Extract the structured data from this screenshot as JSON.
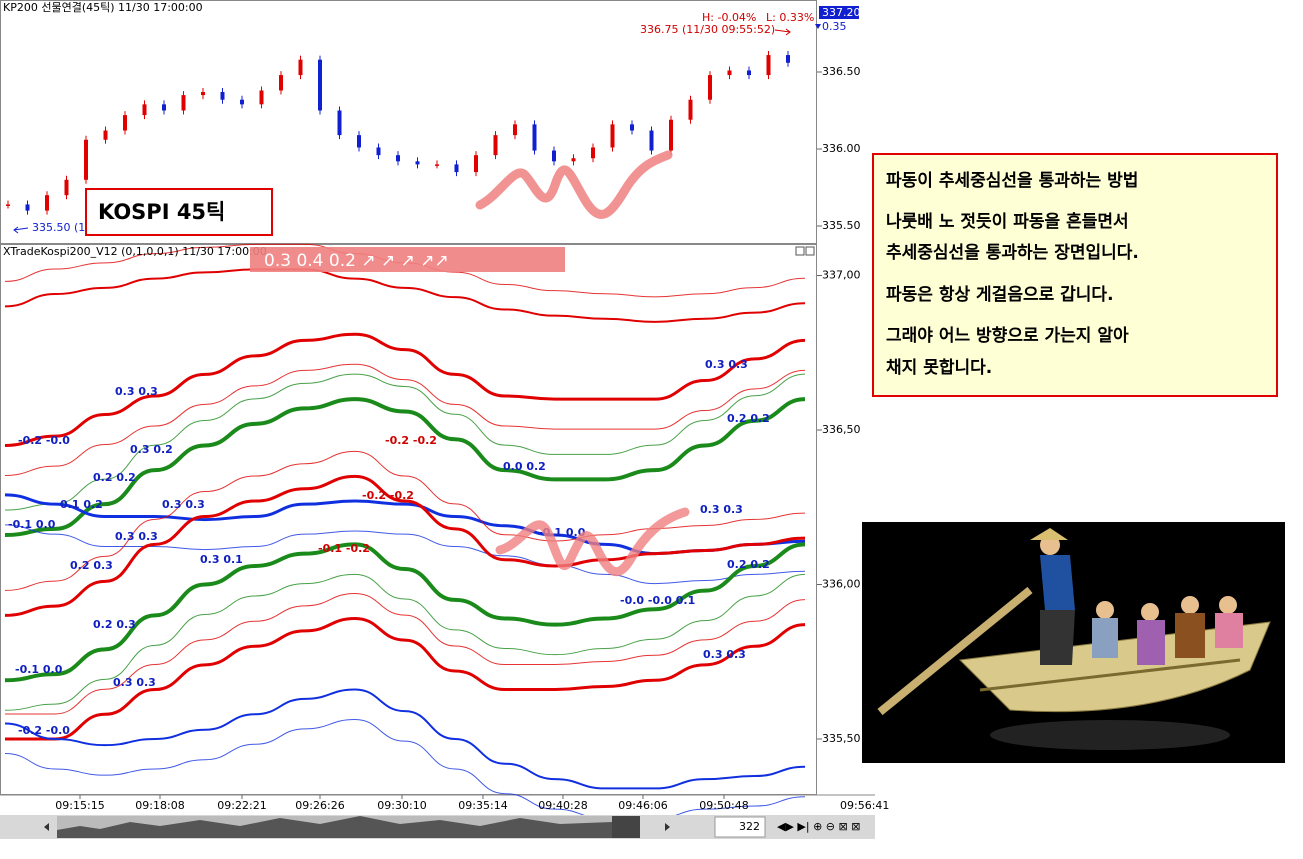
{
  "top_panel": {
    "title": "KP200 선물연결(45틱) 11/30 17:00:00",
    "high_label": "H: -0.04%",
    "low_label": "L: 0.33%",
    "last_label": "336.75 (11/30 09:55:52)",
    "current_price": "337.20",
    "change": "0.35",
    "low_marker": "335.50 (1",
    "annotation": "KOSPI 45틱",
    "ylim": [
      335.4,
      336.95
    ],
    "yticks": [
      {
        "value": 335.5,
        "label": "335.50"
      },
      {
        "value": 336,
        "label": "336.00"
      },
      {
        "value": 336.5,
        "label": "336.50"
      }
    ],
    "values": [
      335.64,
      335.6,
      335.7,
      335.8,
      336.06,
      336.12,
      336.22,
      336.29,
      336.25,
      336.35,
      336.37,
      336.32,
      336.29,
      336.38,
      336.48,
      336.58,
      336.25,
      336.09,
      336.01,
      335.96,
      335.92,
      335.9,
      335.9,
      335.85,
      335.96,
      336.09,
      336.16,
      335.99,
      335.92,
      335.94,
      336.01,
      336.16,
      336.12,
      335.99,
      336.19,
      336.32,
      336.48,
      336.51,
      336.48,
      336.61,
      336.56
    ],
    "up_color": "#e00000",
    "down_color": "#1020d0"
  },
  "indicator_panel": {
    "title": "XTradeKospi200_V12  (0,1,0,0,1) 11/30 17:00:00",
    "banner": "0.3  0.4  0.2  ↗  ↗  ↗   ↗↗",
    "ylim": [
      335.32,
      337.1
    ],
    "yticks": [
      {
        "value": 335.5,
        "label": "335,50"
      },
      {
        "value": 336,
        "label": "336,00"
      },
      {
        "value": 336.5,
        "label": "336,50"
      },
      {
        "value": 337,
        "label": "337,00"
      }
    ],
    "series": [
      {
        "color": "#e00000",
        "width": 2,
        "values": [
          336.9,
          336.94,
          336.96,
          336.99,
          337.01,
          337.02,
          337.02,
          336.99,
          336.96,
          336.93,
          336.89,
          336.87,
          336.86,
          336.85,
          336.86,
          336.88,
          336.91
        ]
      },
      {
        "color": "#e00000",
        "width": 3,
        "values": [
          336.45,
          336.48,
          336.55,
          336.61,
          336.68,
          336.74,
          336.79,
          336.81,
          336.76,
          336.68,
          336.61,
          336.6,
          336.6,
          336.6,
          336.66,
          336.73,
          336.79
        ]
      },
      {
        "color": "#1a8a1a",
        "width": 4,
        "values": [
          336.16,
          336.18,
          336.26,
          336.37,
          336.45,
          336.52,
          336.57,
          336.6,
          336.56,
          336.47,
          336.37,
          336.34,
          336.34,
          336.37,
          336.45,
          336.53,
          336.6
        ]
      },
      {
        "color": "#1030e0",
        "width": 3,
        "values": [
          336.29,
          336.26,
          336.22,
          336.22,
          336.21,
          336.22,
          336.26,
          336.27,
          336.26,
          336.22,
          336.19,
          336.16,
          336.13,
          336.1,
          336.11,
          336.13,
          336.14
        ]
      },
      {
        "color": "#e00000",
        "width": 3,
        "values": [
          335.9,
          335.93,
          336.01,
          336.13,
          336.22,
          336.27,
          336.31,
          336.35,
          336.27,
          336.18,
          336.08,
          336.06,
          336.08,
          336.1,
          336.11,
          336.13,
          336.15
        ]
      },
      {
        "color": "#1a8a1a",
        "width": 4,
        "values": [
          335.69,
          335.71,
          335.79,
          335.9,
          336.0,
          336.06,
          336.1,
          336.13,
          336.05,
          335.95,
          335.89,
          335.87,
          335.89,
          335.92,
          335.98,
          336.06,
          336.13
        ]
      },
      {
        "color": "#e00000",
        "width": 3,
        "values": [
          335.5,
          335.5,
          335.58,
          335.66,
          335.74,
          335.8,
          335.85,
          335.89,
          335.82,
          335.72,
          335.66,
          335.66,
          335.67,
          335.69,
          335.74,
          335.8,
          335.87
        ]
      },
      {
        "color": "#1030e0",
        "width": 2,
        "values": [
          335.55,
          335.5,
          335.48,
          335.5,
          335.53,
          335.58,
          335.63,
          335.66,
          335.59,
          335.5,
          335.42,
          335.37,
          335.34,
          335.34,
          335.37,
          335.38,
          335.41
        ]
      }
    ],
    "labels": [
      {
        "text": "0.3 0.3",
        "color": "#1020c0"
      },
      {
        "text": "-0.2 -0.0",
        "color": "#1020c0"
      },
      {
        "text": "0.3 0.2",
        "color": "#1020c0"
      },
      {
        "text": "0.2 0.2",
        "color": "#1020c0"
      },
      {
        "text": "0.1 0.2",
        "color": "#1020c0"
      },
      {
        "text": "-0.1 0.0",
        "color": "#1020c0"
      },
      {
        "text": "0.3 0.3",
        "color": "#1020c0"
      },
      {
        "text": "0.3 0.3",
        "color": "#1020c0"
      },
      {
        "text": "0.2 0.3",
        "color": "#1020c0"
      },
      {
        "text": "0.3 0.1",
        "color": "#1020c0"
      },
      {
        "text": "-0.2 -0.2",
        "color": "#d00000"
      },
      {
        "text": "0.0 0.2",
        "color": "#1020c0"
      },
      {
        "text": "-0.2 -0.2",
        "color": "#d00000"
      },
      {
        "text": "-0.1 0.0",
        "color": "#1020c0"
      },
      {
        "text": "-0.1 -0.2",
        "color": "#d00000"
      },
      {
        "text": "0.3 0.3",
        "color": "#1020c0"
      },
      {
        "text": "0.2 0.2",
        "color": "#1020c0"
      },
      {
        "text": "0.3 0.3",
        "color": "#1020c0"
      },
      {
        "text": "0.2 0.2",
        "color": "#1020c0"
      },
      {
        "text": "-0.0 -0.0 0.1",
        "color": "#1020c0"
      },
      {
        "text": "0.2 0.3",
        "color": "#1020c0"
      },
      {
        "text": "-0.1 0.0",
        "color": "#1020c0"
      },
      {
        "text": "0.3 0.3",
        "color": "#1020c0"
      },
      {
        "text": "0.3 0.3",
        "color": "#1020c0"
      },
      {
        "text": "-0.2 -0.0",
        "color": "#1020c0"
      }
    ]
  },
  "time_axis": {
    "labels": [
      "09:15:15",
      "09:18:08",
      "09:22:21",
      "09:26:26",
      "09:30:10",
      "09:35:14",
      "09:40:28",
      "09:46:06",
      "09:50:48"
    ],
    "last": "09:56:41"
  },
  "scrollbar": {
    "count": "322"
  },
  "note": {
    "lines": [
      "파동이 추세중심선을 통과하는 방법",
      "나룻배 노 젓듯이 파동을 흔들면서",
      "추세중심선을 통과하는 장면입니다.",
      "파동은 항상 게걸음으로 갑니다.",
      "그래야 어느 방향으로 가는지 알아",
      "채지 못합니다."
    ]
  }
}
